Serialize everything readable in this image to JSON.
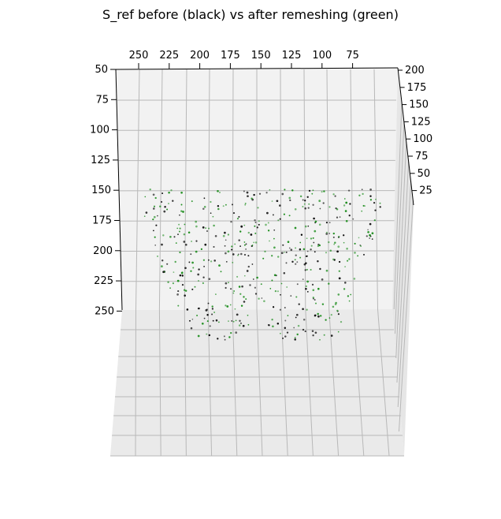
{
  "chart_data": {
    "type": "scatter",
    "projection": "3d",
    "title": "S_ref before (black) vs after remeshing (green)",
    "grid": true,
    "axes": {
      "x": {
        "ticks": [
          250,
          225,
          200,
          175,
          150,
          125,
          100,
          75
        ],
        "range": [
          60,
          265
        ]
      },
      "y": {
        "ticks": [
          50,
          75,
          100,
          125,
          150,
          175,
          200,
          225,
          250
        ],
        "range": [
          45,
          260
        ]
      },
      "z": {
        "ticks": [
          200,
          175,
          150,
          125,
          100,
          75,
          50,
          25
        ],
        "range": [
          15,
          210
        ]
      }
    },
    "series": [
      {
        "color": "#000000",
        "marker": "dot",
        "point_count": 240
      },
      {
        "color": "#1a8c1a",
        "marker": "dot",
        "point_count": 260
      }
    ]
  }
}
